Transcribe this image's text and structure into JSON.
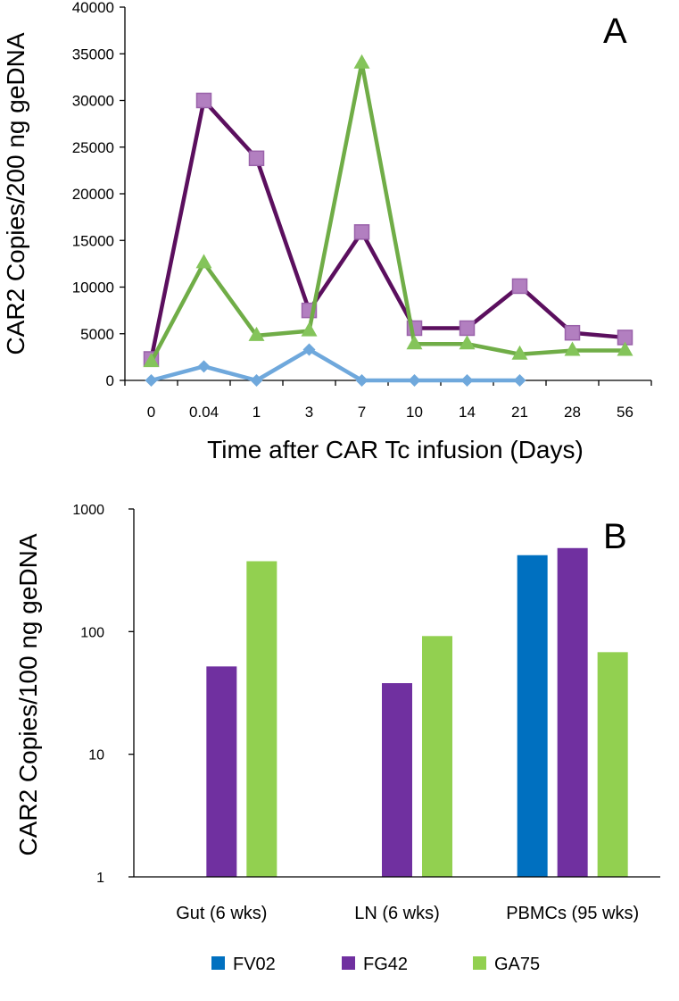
{
  "chart_data": [
    {
      "type": "line",
      "panel": "A",
      "title": "",
      "xlabel": "Time after CAR Tc infusion (Days)",
      "ylabel": "CAR2 Copies/200 ng geDNA",
      "categories": [
        "0",
        "0.04",
        "1",
        "3",
        "7",
        "10",
        "14",
        "21",
        "28",
        "56"
      ],
      "ylim": [
        0,
        40000
      ],
      "yticks": [
        0,
        5000,
        10000,
        15000,
        20000,
        25000,
        30000,
        35000,
        40000
      ],
      "series": [
        {
          "name": "FV02",
          "color": "#6fa8dc",
          "marker": "diamond",
          "values": [
            0,
            1500,
            0,
            3300,
            0,
            0,
            0,
            0,
            null,
            null
          ]
        },
        {
          "name": "FG42",
          "color": "#5b0f5e",
          "markerColor": "#b27fc0",
          "marker": "square",
          "values": [
            2300,
            30000,
            23800,
            7500,
            15900,
            5600,
            5600,
            10100,
            5100,
            4600
          ]
        },
        {
          "name": "GA75",
          "color": "#70ad47",
          "markerColor": "#84c45a",
          "marker": "triangle",
          "values": [
            2000,
            12600,
            4800,
            5300,
            34000,
            3900,
            3900,
            2800,
            3200,
            3200
          ]
        }
      ]
    },
    {
      "type": "bar",
      "panel": "B",
      "title": "",
      "xlabel": "",
      "ylabel": "CAR2 Copies/100 ng geDNA",
      "scale": "log",
      "ylim": [
        1,
        1000
      ],
      "yticks": [
        1,
        10,
        100,
        1000
      ],
      "categories": [
        "Gut (6 wks)",
        "LN (6 wks)",
        "PBMCs (95 wks)"
      ],
      "series": [
        {
          "name": "FV02",
          "color": "#0070c0",
          "values": [
            null,
            null,
            420
          ]
        },
        {
          "name": "FG42",
          "color": "#7030a0",
          "values": [
            52,
            38,
            480
          ]
        },
        {
          "name": "GA75",
          "color": "#92d050",
          "values": [
            375,
            92,
            68
          ]
        }
      ],
      "legend": "bottom"
    }
  ]
}
